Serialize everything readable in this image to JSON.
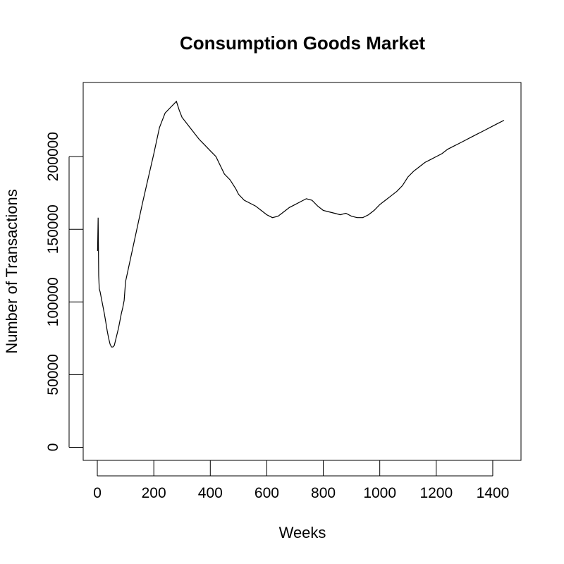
{
  "chart_data": {
    "type": "line",
    "title": "Consumption Goods Market",
    "xlabel": "Weeks",
    "ylabel": "Number of Transactions",
    "xlim": [
      -50,
      1500
    ],
    "ylim": [
      -9000,
      251000
    ],
    "x_ticks": [
      0,
      200,
      400,
      600,
      800,
      1000,
      1200,
      1400
    ],
    "x_tick_labels": [
      "0",
      "200",
      "400",
      "600",
      "800",
      "1000",
      "1200",
      "1400"
    ],
    "y_ticks": [
      0,
      50000,
      100000,
      150000,
      200000
    ],
    "y_tick_labels": [
      "0",
      "50000",
      "100000",
      "150000",
      "200000"
    ],
    "grid": false,
    "legend": "none",
    "line_color": "#000000",
    "series": [
      {
        "x": [
          1,
          3,
          5,
          7,
          10,
          15,
          20,
          25,
          30,
          35,
          40,
          45,
          50,
          55,
          60,
          65,
          70,
          75,
          80,
          85,
          90,
          95,
          100,
          120,
          140,
          160,
          180,
          200,
          220,
          240,
          260,
          270,
          280,
          290,
          300,
          320,
          340,
          360,
          380,
          400,
          420,
          430,
          440,
          450,
          460,
          470,
          480,
          490,
          500,
          520,
          540,
          560,
          580,
          600,
          620,
          640,
          660,
          680,
          700,
          720,
          740,
          760,
          780,
          800,
          820,
          840,
          860,
          880,
          900,
          920,
          940,
          960,
          980,
          1000,
          1020,
          1040,
          1060,
          1080,
          1100,
          1120,
          1140,
          1160,
          1180,
          1200,
          1220,
          1240,
          1260,
          1280,
          1300,
          1320,
          1340,
          1360,
          1380,
          1400,
          1420,
          1440
        ],
        "y": [
          135000,
          158000,
          118000,
          109000,
          107000,
          102000,
          97000,
          92000,
          86000,
          80000,
          75000,
          71000,
          69000,
          69000,
          70000,
          74000,
          78000,
          82000,
          87000,
          92000,
          96000,
          101000,
          114000,
          132000,
          150000,
          168000,
          185000,
          202000,
          220000,
          230000,
          234000,
          236000,
          238000,
          232000,
          227000,
          222000,
          217000,
          212000,
          208000,
          204000,
          200000,
          196000,
          192000,
          188000,
          186000,
          184000,
          181000,
          178000,
          174000,
          170000,
          168000,
          166000,
          163000,
          160000,
          158000,
          159000,
          162000,
          165000,
          167000,
          169000,
          171000,
          170000,
          166000,
          163000,
          162000,
          161000,
          160000,
          161000,
          159000,
          158000,
          158000,
          160000,
          163000,
          167000,
          170000,
          173000,
          176000,
          180000,
          186000,
          190000,
          193000,
          196000,
          198000,
          200000,
          202000,
          205000,
          207000,
          209000,
          211000,
          213000,
          215000,
          217000,
          219000,
          221000,
          223000,
          225000
        ]
      }
    ]
  }
}
